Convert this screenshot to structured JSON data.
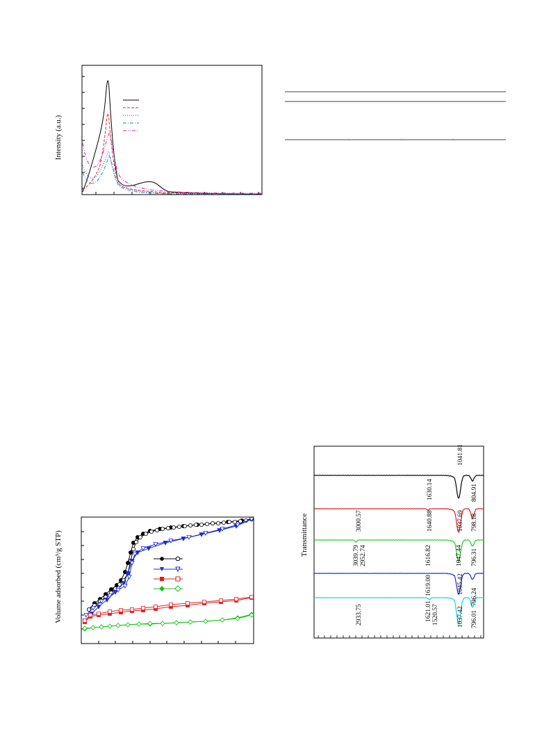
{
  "figures": {
    "xrd": {
      "ylabel": "Intensity (a.u.)",
      "legend_colors": [
        "#000000",
        "#e8242b",
        "#1f3bd6",
        "#1a8f8f",
        "#c81ec8"
      ]
    },
    "table": {
      "rows": 3
    },
    "isotherm": {
      "ylabel": "Volume adsorbed (cm³/g STP)",
      "legend_colors": [
        "#000000",
        "#1a2bd8",
        "#e21b1b",
        "#16c316"
      ]
    },
    "ftir": {
      "ylabel": "Transmittance",
      "traces": [
        {
          "color": "#000000",
          "labels": [
            "1630.14",
            "1041.81",
            "804.91"
          ]
        },
        {
          "color": "#e21b1b",
          "labels": [
            "3000.57",
            "1640.88",
            "1037.69",
            "798.18"
          ]
        },
        {
          "color": "#22cc22",
          "labels": [
            "3039.79",
            "2952.74",
            "1616.82",
            "1047.44",
            "796.31"
          ]
        },
        {
          "color": "#1a2bd8",
          "labels": [
            "1619.00",
            "1045.42",
            "796.24"
          ]
        },
        {
          "color": "#19d3d3",
          "labels": [
            "2933.75",
            "1621.01",
            "1520.57",
            "1037.42",
            "796.01"
          ]
        }
      ]
    }
  }
}
